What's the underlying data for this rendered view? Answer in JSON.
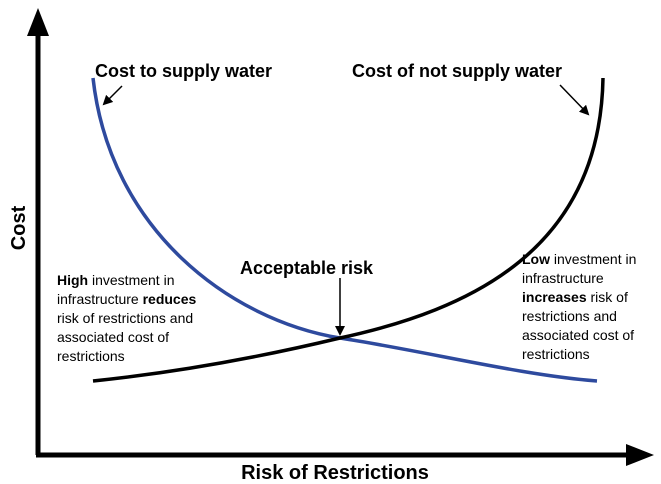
{
  "axes": {
    "y_label": "Cost",
    "x_label": "Risk of Restrictions"
  },
  "curves": [
    {
      "label": "Cost to supply water"
    },
    {
      "label": "Cost of not supply water"
    }
  ],
  "intersection": {
    "label": "Acceptable risk"
  },
  "notes": {
    "left": [
      [
        {
          "text": "High",
          "bold": true
        },
        {
          "text": " investment in",
          "bold": false
        }
      ],
      [
        {
          "text": "infrastructure ",
          "bold": false
        },
        {
          "text": "reduces",
          "bold": true
        }
      ],
      [
        {
          "text": "risk of restrictions and",
          "bold": false
        }
      ],
      [
        {
          "text": "associated cost of",
          "bold": false
        }
      ],
      [
        {
          "text": "restrictions",
          "bold": false
        }
      ]
    ],
    "right": [
      [
        {
          "text": "Low",
          "bold": true
        },
        {
          "text": " investment in",
          "bold": false
        }
      ],
      [
        {
          "text": "infrastructure",
          "bold": false
        }
      ],
      [
        {
          "text": "increases",
          "bold": true
        },
        {
          "text": " risk of",
          "bold": false
        }
      ],
      [
        {
          "text": "restrictions and",
          "bold": false
        }
      ],
      [
        {
          "text": "associated cost of",
          "bold": false
        }
      ],
      [
        {
          "text": "restrictions",
          "bold": false
        }
      ]
    ]
  }
}
